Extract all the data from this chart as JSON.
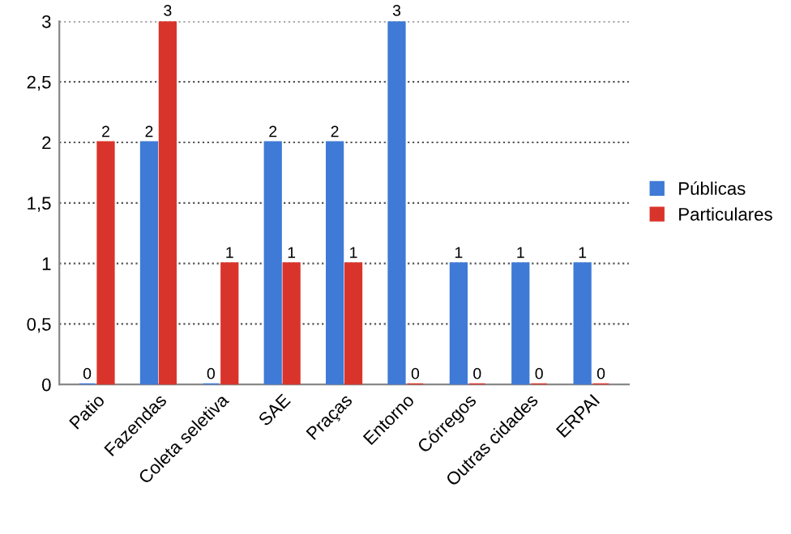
{
  "chart_data": {
    "type": "bar",
    "categories": [
      "Patio",
      "Fazendas",
      "Coleta seletiva",
      "SAE",
      "Praças",
      "Entorno",
      "Córregos",
      "Outras cidades",
      "ERPAI"
    ],
    "series": [
      {
        "name": "Públicas",
        "color": "#3f7ad6",
        "values": [
          0,
          2,
          0,
          2,
          2,
          3,
          1,
          1,
          1
        ]
      },
      {
        "name": "Particulares",
        "color": "#d9342b",
        "values": [
          2,
          3,
          1,
          1,
          1,
          0,
          0,
          0,
          0
        ]
      }
    ],
    "ylim": [
      0,
      3
    ],
    "yticks": [
      0,
      {
        "value": 0.5,
        "label": "0,5"
      },
      1,
      {
        "value": 1.5,
        "label": "1,5"
      },
      2,
      {
        "value": 2.5,
        "label": "2,5"
      },
      3
    ],
    "grid": "y",
    "legend": "right",
    "data_labels": true
  }
}
